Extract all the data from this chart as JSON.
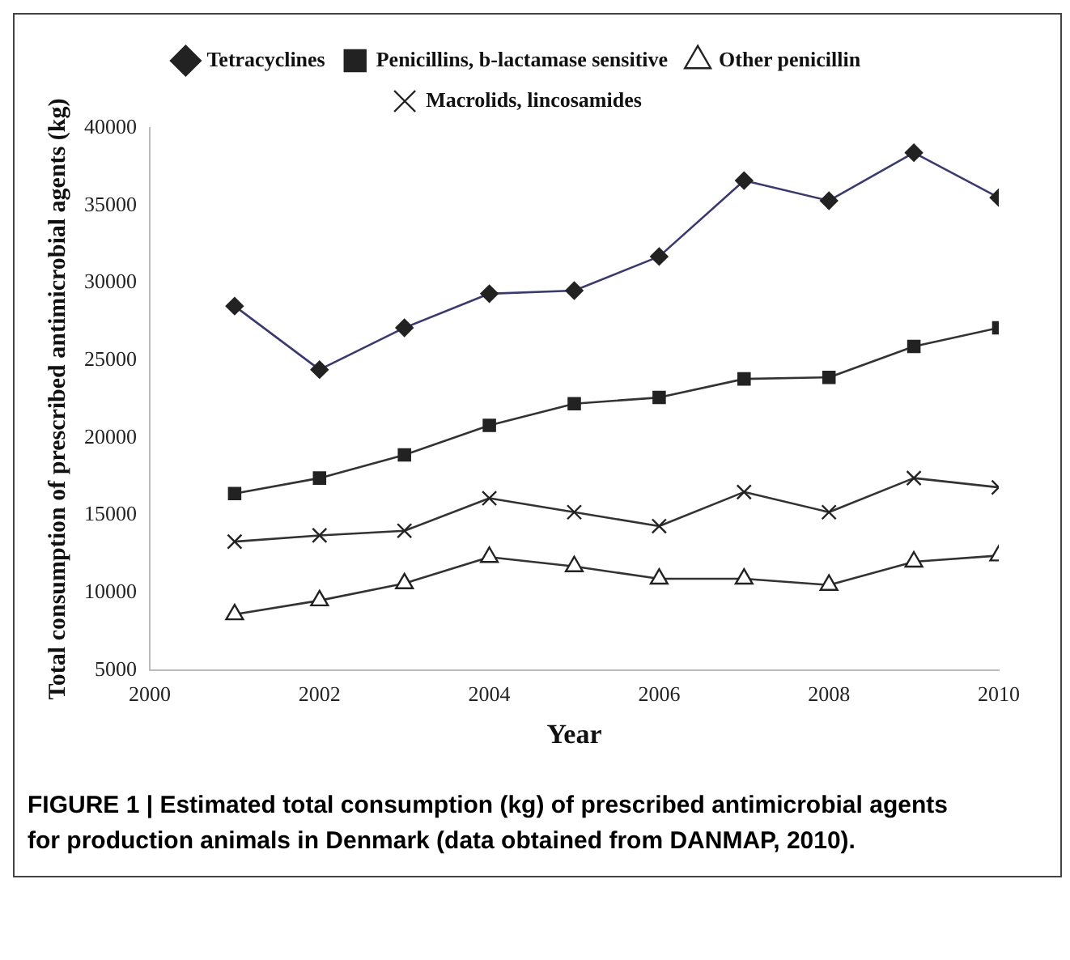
{
  "chart_data": {
    "type": "line",
    "xlabel": "Year",
    "ylabel": "Total consumption of prescribed antimicrobial agents (kg)",
    "annotations": [
      "FIGURE 1 | Estimated total consumption (kg) of prescribed antimicrobial agents for production animals in Denmark (data obtained from DANMAP, 2010)."
    ],
    "x": [
      2001,
      2002,
      2003,
      2004,
      2005,
      2006,
      2007,
      2008,
      2009,
      2010
    ],
    "series": [
      {
        "name": "Tetracyclines",
        "color": "#3a3a6e",
        "marker": "diamond",
        "values": [
          28500,
          24400,
          27100,
          29300,
          29500,
          31700,
          36600,
          35300,
          38400,
          35500
        ]
      },
      {
        "name": "Penicillins, b-lactamase sensitive",
        "color": "#333333",
        "marker": "square",
        "values": [
          16400,
          17400,
          18900,
          20800,
          22200,
          22600,
          23800,
          23900,
          25900,
          27100
        ]
      },
      {
        "name": "Other penicillin",
        "color": "#333333",
        "marker": "triangle",
        "values": [
          8600,
          9500,
          10600,
          12300,
          11700,
          10900,
          10900,
          10500,
          12000,
          12400
        ]
      },
      {
        "name": "Macrolids, lincosamides",
        "color": "#333333",
        "marker": "cross",
        "values": [
          13300,
          13700,
          14000,
          16100,
          15200,
          14300,
          16500,
          15200,
          17400,
          16800
        ]
      }
    ],
    "xlim": [
      2000,
      2010
    ],
    "xticks": [
      2000,
      2002,
      2004,
      2006,
      2008,
      2010
    ],
    "ylim": [
      5000,
      40000
    ],
    "yticks": [
      5000,
      10000,
      15000,
      20000,
      25000,
      30000,
      35000,
      40000
    ],
    "grid": false,
    "legend": "top",
    "line_style": "solid"
  }
}
